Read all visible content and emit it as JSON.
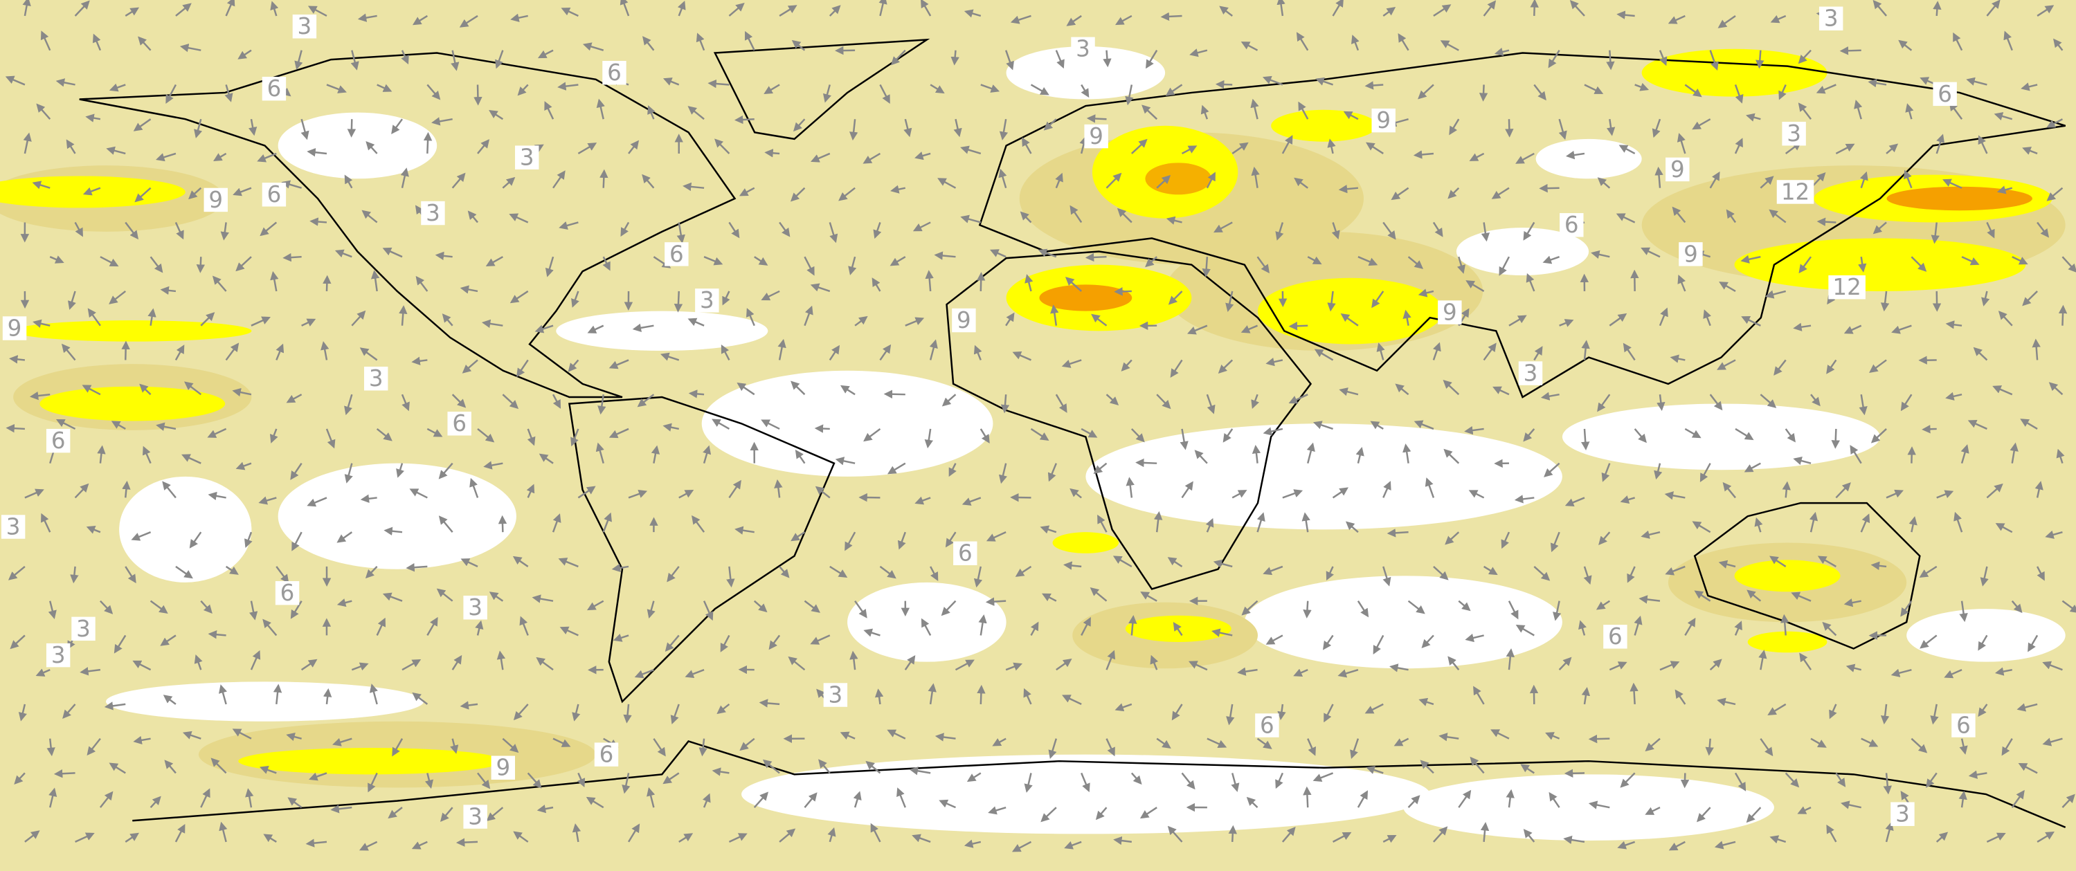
{
  "contour_labels": [
    "3",
    "3",
    "3",
    "6",
    "6",
    "6",
    "9",
    "3",
    "3",
    "9",
    "9",
    "9",
    "6",
    "3",
    "12",
    "6",
    "6",
    "9",
    "12",
    "3",
    "9",
    "9",
    "9",
    "3",
    "3",
    "6",
    "6",
    "3",
    "6",
    "6",
    "3",
    "3",
    "3",
    "6",
    "3",
    "6",
    "6",
    "9",
    "6",
    "3",
    "3"
  ]
}
